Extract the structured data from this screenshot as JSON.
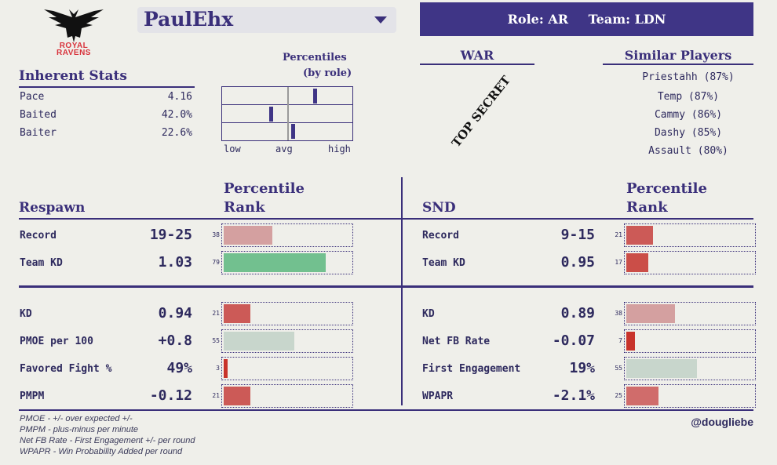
{
  "logo": {
    "line1": "ROYAL",
    "line2": "RAVENS"
  },
  "player": {
    "name": "PaulEhx"
  },
  "banner": {
    "role": "Role: AR",
    "team": "Team: LDN"
  },
  "inherent": {
    "title": "Inherent Stats",
    "stats": [
      {
        "label": "Pace",
        "value": "4.16",
        "percentile": 0.72
      },
      {
        "label": "Baited",
        "value": "42.0%",
        "percentile": 0.38
      },
      {
        "label": "Baiter",
        "value": "22.6%",
        "percentile": 0.55
      }
    ],
    "percentiles_title_1": "Percentiles",
    "percentiles_title_2": "(by role)",
    "axis": {
      "low": "low",
      "avg": "avg",
      "high": "high"
    }
  },
  "war": {
    "title": "WAR",
    "stamp": "TOP SECRET"
  },
  "similar": {
    "title": "Similar Players",
    "players": [
      "Priestahh (87%)",
      "Temp (87%)",
      "Cammy (86%)",
      "Dashy (85%)",
      "Assault (80%)"
    ]
  },
  "respawn": {
    "title": "Respawn",
    "rank_title_1": "Percentile",
    "rank_title_2": "Rank",
    "rows": [
      {
        "label": "Record",
        "value": "19-25",
        "pct": "38",
        "pct_num": 38,
        "color": "#d4a0a0"
      },
      {
        "label": "Team KD",
        "value": "1.03",
        "pct": "79",
        "pct_num": 79,
        "color": "#72c08f"
      },
      {
        "label": "KD",
        "value": "0.94",
        "pct": "21",
        "pct_num": 21,
        "color": "#cc5a57"
      },
      {
        "label": "PMOE per 100",
        "value": "+0.8",
        "pct": "55",
        "pct_num": 55,
        "color": "#c8d6cc"
      },
      {
        "label": "Favored Fight %",
        "value": "49%",
        "pct": "3",
        "pct_num": 3,
        "color": "#c8332b"
      },
      {
        "label": "PMPM",
        "value": "-0.12",
        "pct": "21",
        "pct_num": 21,
        "color": "#cc5a57"
      }
    ]
  },
  "snd": {
    "title": "SND",
    "rank_title_1": "Percentile",
    "rank_title_2": "Rank",
    "rows": [
      {
        "label": "Record",
        "value": "9-15",
        "pct": "21",
        "pct_num": 21,
        "color": "#cc5a57"
      },
      {
        "label": "Team KD",
        "value": "0.95",
        "pct": "17",
        "pct_num": 17,
        "color": "#cb4e48"
      },
      {
        "label": "KD",
        "value": "0.89",
        "pct": "38",
        "pct_num": 38,
        "color": "#d4a0a0"
      },
      {
        "label": "Net FB Rate",
        "value": "-0.07",
        "pct": "7",
        "pct_num": 7,
        "color": "#c8332b"
      },
      {
        "label": "First Engagement",
        "value": "19%",
        "pct": "55",
        "pct_num": 55,
        "color": "#c8d6cc"
      },
      {
        "label": "WPAPR",
        "value": "-2.1%",
        "pct": "25",
        "pct_num": 25,
        "color": "#d06c6b"
      }
    ]
  },
  "footnotes": [
    "PMOE - +/- over expected +/-",
    "PMPM - plus-minus per minute",
    "Net FB Rate - First Engagement +/- per round",
    "WPAPR - Win Probability Added per round"
  ],
  "credit": "@dougliebe"
}
